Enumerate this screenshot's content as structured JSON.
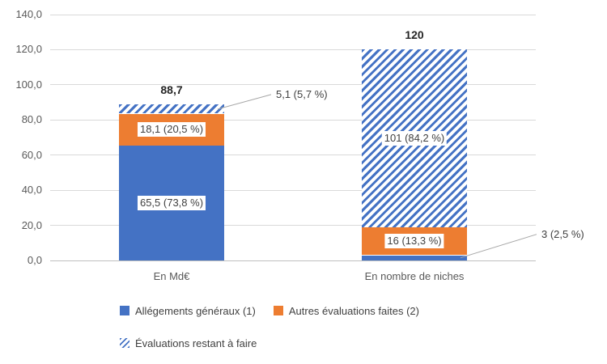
{
  "chart_data": {
    "type": "bar",
    "stacked": true,
    "grid": true,
    "legend_position": "bottom",
    "categories": [
      "En Md€",
      "En nombre de niches"
    ],
    "ylim": [
      0,
      140
    ],
    "yticks": [
      {
        "value": 0,
        "label": "0,0"
      },
      {
        "value": 20,
        "label": "20,0"
      },
      {
        "value": 40,
        "label": "40,0"
      },
      {
        "value": 60,
        "label": "60,0"
      },
      {
        "value": 80,
        "label": "80,0"
      },
      {
        "value": 100,
        "label": "100,0"
      },
      {
        "value": 120,
        "label": "120,0"
      },
      {
        "value": 140,
        "label": "140,0"
      }
    ],
    "series": [
      {
        "name": "Allégements généraux (1)",
        "color": "#4472C4",
        "pattern": "solid",
        "values": [
          65.5,
          3
        ],
        "labels": [
          "65,5 (73,8 %)",
          "3 (2,5 %)"
        ],
        "label_placement": [
          "inside",
          "callout-right"
        ]
      },
      {
        "name": "Autres évaluations faites (2)",
        "color": "#ED7D31",
        "pattern": "solid",
        "values": [
          18.1,
          16
        ],
        "labels": [
          "18,1 (20,5 %)",
          "16 (13,3 %)"
        ],
        "label_placement": [
          "inside",
          "inside"
        ]
      },
      {
        "name": "Évaluations restant à faire",
        "color": "#4472C4",
        "pattern": "diagonal-hatch",
        "values": [
          5.1,
          101
        ],
        "labels": [
          "5,1 (5,7 %)",
          "101 (84,2 %)"
        ],
        "label_placement": [
          "callout-right",
          "inside"
        ]
      }
    ],
    "totals": [
      {
        "category": "En Md€",
        "value": 88.7,
        "label": "88,7"
      },
      {
        "category": "En nombre de niches",
        "value": 120,
        "label": "120"
      }
    ],
    "colors": {
      "bar_blue": "#4472C4",
      "bar_orange": "#ED7D31",
      "gridline": "#D9D9D9",
      "axis_line": "#BFBFBF",
      "axis_text": "#595959",
      "label_text": "#404040",
      "total_text": "#262626",
      "leader_line": "#A6A6A6",
      "background": "#FFFFFF"
    }
  }
}
